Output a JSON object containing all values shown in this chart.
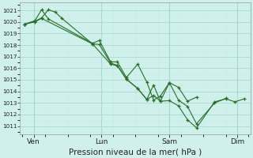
{
  "xlabel": "Pression niveau de la mer( hPa )",
  "bg_color": "#cff0eb",
  "grid_major_color": "#aad8d3",
  "grid_minor_color": "#c5ece8",
  "line_color": "#2a6e2a",
  "ylim": [
    1010.3,
    1021.7
  ],
  "yticks": [
    1011,
    1012,
    1013,
    1014,
    1015,
    1016,
    1017,
    1018,
    1019,
    1020,
    1021
  ],
  "day_labels": [
    "Ven",
    "Lun",
    "Sam",
    "Dim"
  ],
  "day_positions": [
    0.5,
    3.5,
    6.5,
    9.5
  ],
  "xlim": [
    -0.1,
    10.1
  ],
  "series1_x": [
    0.1,
    0.55,
    0.85,
    1.15,
    1.45,
    1.75,
    3.1,
    3.4,
    3.9,
    4.2,
    4.6,
    5.1,
    5.5,
    5.8,
    6.1,
    6.5,
    6.9,
    7.3,
    7.7,
    8.5,
    9.0,
    9.4,
    9.8
  ],
  "series1_y": [
    1019.8,
    1020.05,
    1020.35,
    1021.05,
    1020.85,
    1020.3,
    1018.1,
    1018.05,
    1016.45,
    1016.25,
    1015.05,
    1014.25,
    1013.3,
    1014.55,
    1013.15,
    1013.2,
    1012.75,
    1011.55,
    1010.85,
    1013.1,
    1013.35,
    1013.1,
    1013.35
  ],
  "series2_x": [
    0.1,
    0.55,
    0.85,
    1.15,
    3.1,
    3.4,
    3.9,
    4.2,
    4.6,
    5.1,
    5.5,
    5.8,
    6.1,
    6.5,
    6.9,
    7.3,
    7.7,
    8.5,
    9.0
  ],
  "series2_y": [
    1019.8,
    1020.1,
    1021.05,
    1020.25,
    1018.15,
    1018.4,
    1016.55,
    1016.55,
    1015.2,
    1016.35,
    1014.8,
    1013.25,
    1013.6,
    1014.75,
    1013.25,
    1012.7,
    1011.2,
    1013.0,
    1013.4
  ],
  "series3_x": [
    0.1,
    0.55,
    0.85,
    3.1,
    3.9,
    4.2,
    4.6,
    5.1,
    5.5,
    5.8,
    6.1,
    6.5,
    6.9,
    7.3,
    7.7
  ],
  "series3_y": [
    1019.8,
    1020.0,
    1020.3,
    1018.1,
    1016.35,
    1016.2,
    1015.05,
    1014.25,
    1013.3,
    1013.65,
    1013.15,
    1014.75,
    1014.35,
    1013.15,
    1013.5
  ]
}
